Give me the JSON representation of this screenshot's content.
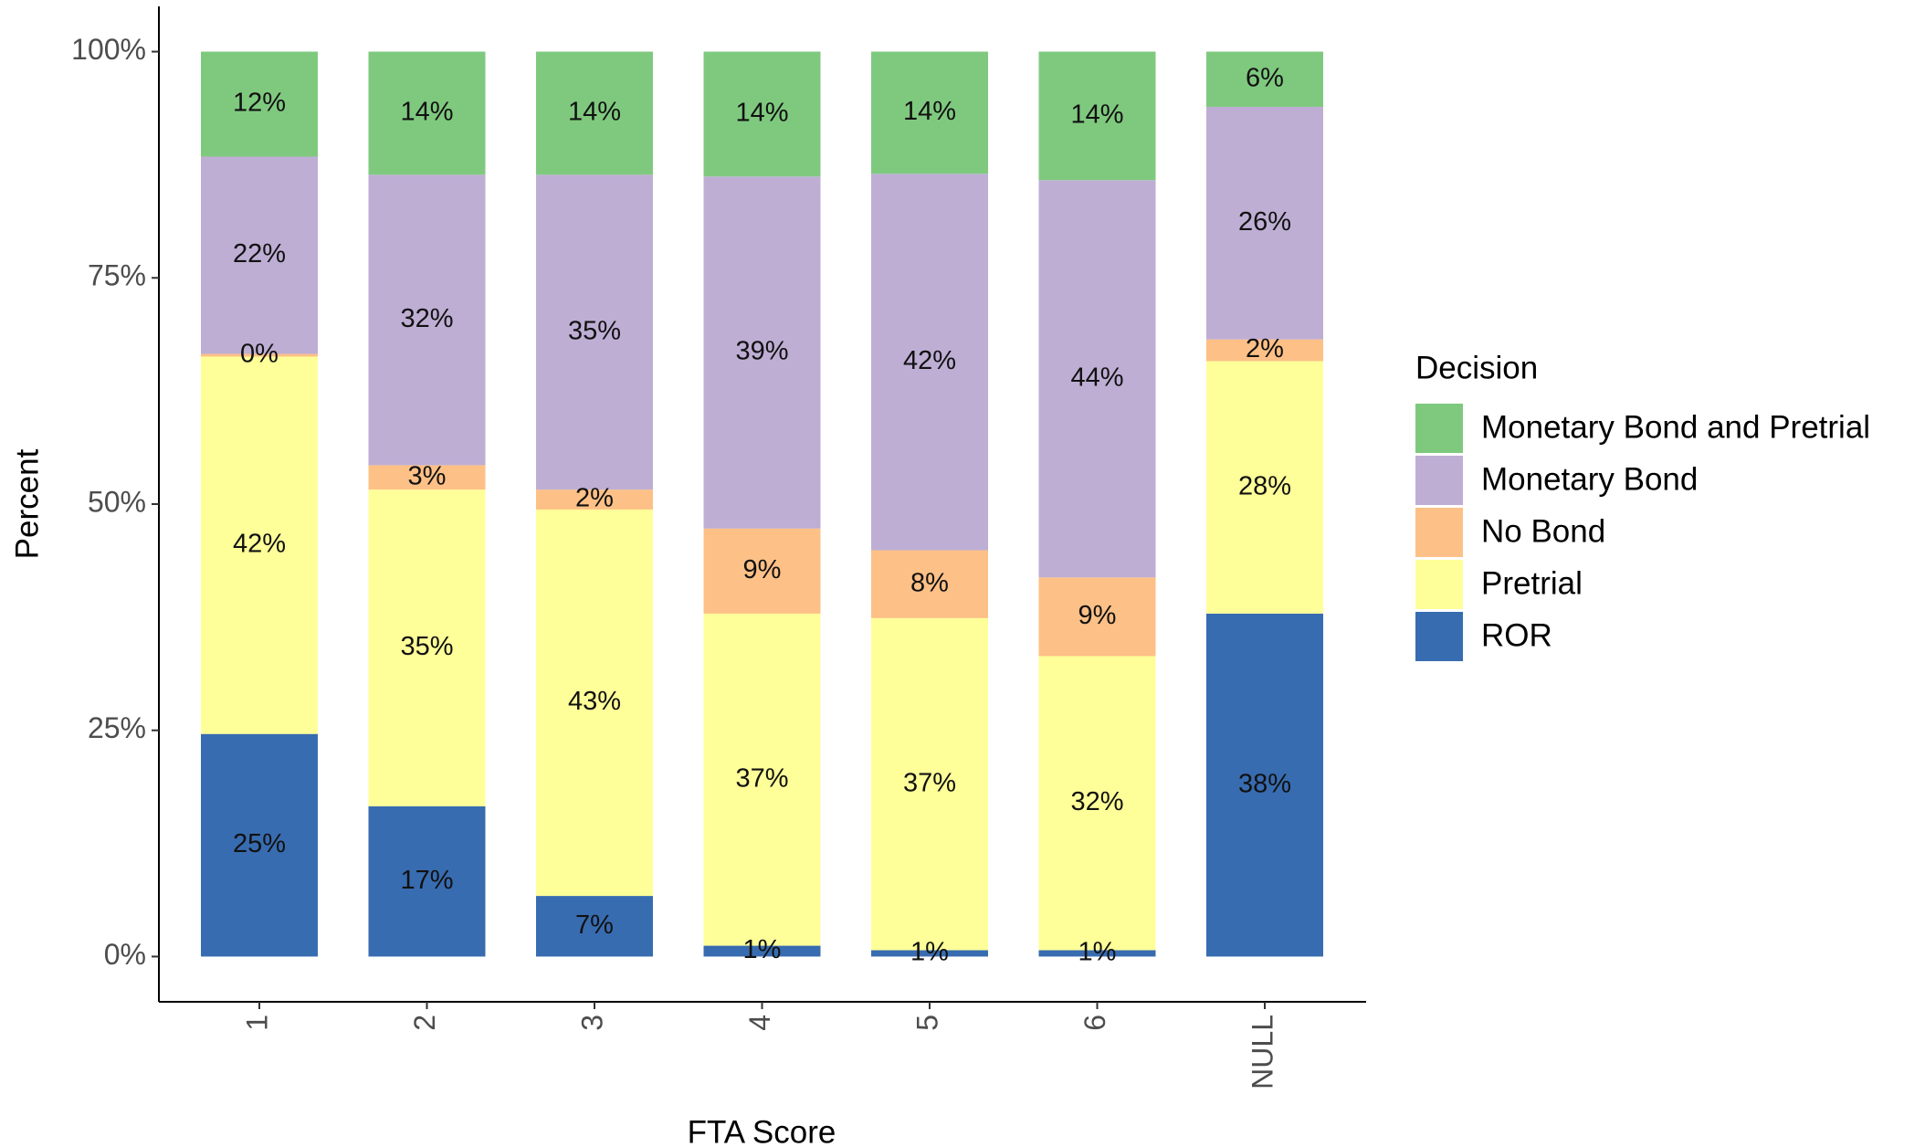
{
  "chart_data": {
    "type": "stacked_bar",
    "x_label": "FTA Score",
    "y_label": "Percent",
    "categories": [
      "1",
      "2",
      "3",
      "4",
      "5",
      "6",
      "NULL"
    ],
    "legend_title": "Decision",
    "legend_position": "right",
    "series": [
      {
        "name": "ROR",
        "color": "#386cb0",
        "values": [
          24.6,
          16.6,
          6.7,
          1.2,
          0.7,
          0.7,
          37.9
        ],
        "value_labels": [
          "25%",
          "17%",
          "7%",
          "1%",
          "1%",
          "1%",
          "38%"
        ]
      },
      {
        "name": "Pretrial",
        "color": "#ffff99",
        "values": [
          41.7,
          35.0,
          42.7,
          36.7,
          36.7,
          32.5,
          27.9
        ],
        "value_labels": [
          "42%",
          "35%",
          "43%",
          "37%",
          "37%",
          "32%",
          "28%"
        ]
      },
      {
        "name": "No Bond",
        "color": "#fdc086",
        "values": [
          0.3,
          2.7,
          2.2,
          9.4,
          7.5,
          8.7,
          2.4
        ],
        "value_labels": [
          "0%",
          "3%",
          "2%",
          "9%",
          "8%",
          "9%",
          "2%"
        ]
      },
      {
        "name": "Monetary Bond",
        "color": "#beaed4",
        "values": [
          21.8,
          32.1,
          34.8,
          38.9,
          41.6,
          43.9,
          25.7
        ],
        "value_labels": [
          "22%",
          "32%",
          "35%",
          "39%",
          "42%",
          "44%",
          "26%"
        ]
      },
      {
        "name": "Monetary Bond and Pretrial",
        "color": "#7fc97f",
        "values": [
          11.6,
          13.6,
          13.6,
          13.8,
          13.5,
          14.2,
          6.1
        ],
        "value_labels": [
          "12%",
          "14%",
          "14%",
          "14%",
          "14%",
          "14%",
          "6%"
        ]
      }
    ],
    "ylim": [
      -5,
      105
    ],
    "yticks": [
      {
        "value": 0,
        "label": "0%"
      },
      {
        "value": 25,
        "label": "25%"
      },
      {
        "value": 50,
        "label": "50%"
      },
      {
        "value": 75,
        "label": "75%"
      },
      {
        "value": 100,
        "label": "100%"
      }
    ],
    "grid": false
  }
}
